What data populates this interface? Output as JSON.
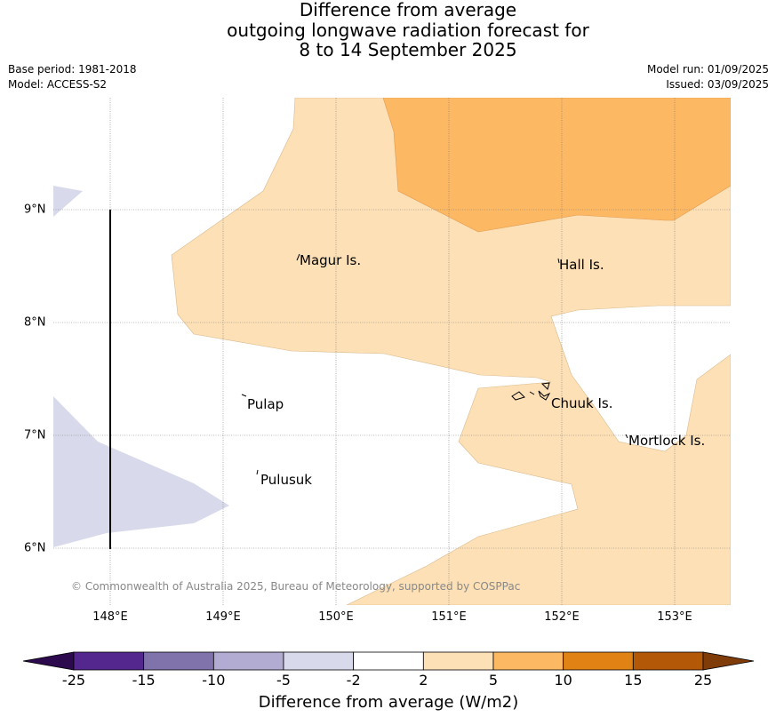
{
  "title": {
    "line1": "Difference from average",
    "line2": "outgoing longwave radiation forecast for",
    "line3": "8 to 14 September 2025"
  },
  "meta": {
    "base_period": "Base period: 1981-2018",
    "model": "Model: ACCESS-S2",
    "model_run": "Model run: 01/09/2025",
    "issued": "Issued: 03/09/2025"
  },
  "map": {
    "lon_range": [
      147.5,
      153.5
    ],
    "lat_range": [
      5.5,
      10.0
    ],
    "lon_ticks": [
      "148°E",
      "149°E",
      "150°E",
      "151°E",
      "152°E",
      "153°E"
    ],
    "lat_ticks": [
      "9°N",
      "8°N",
      "7°N",
      "6°N"
    ],
    "places": [
      "Magur Is.",
      "Hall Is.",
      "Pulap",
      "Chuuk Is.",
      "Mortlock Is.",
      "Pulusuk"
    ],
    "copyright": "© Commonwealth of Australia 2025, Bureau of Meteorology, supported by COSPPac"
  },
  "colorbar": {
    "title": "Difference from average (W/m2)",
    "labels": [
      "-25",
      "-15",
      "-10",
      "-5",
      "-2",
      "2",
      "5",
      "10",
      "15",
      "25"
    ],
    "colors": [
      "#2d0a4e",
      "#54278f",
      "#8073ac",
      "#b2abd2",
      "#d8daeb",
      "#ffffff",
      "#fde0b5",
      "#fdb863",
      "#e08214",
      "#b35806",
      "#7f3b08"
    ]
  }
}
